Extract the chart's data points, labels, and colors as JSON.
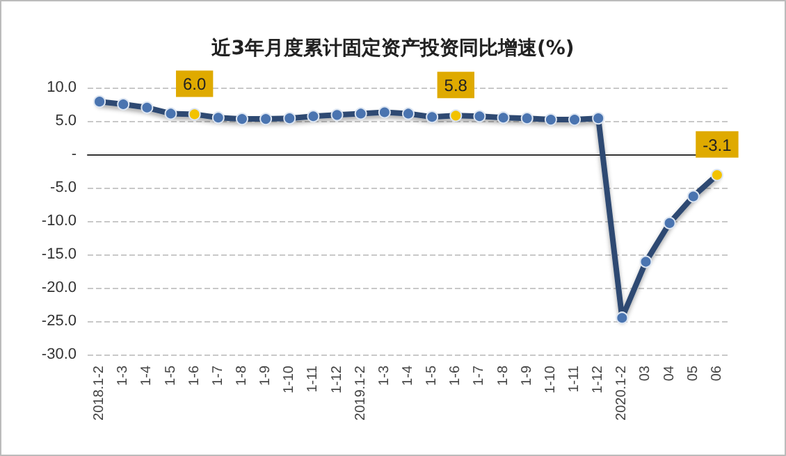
{
  "chart_data": {
    "type": "line",
    "title": "近3年月度累计固定资产投资同比增速(%)",
    "categories": [
      "2018.1-2",
      "1-3",
      "1-4",
      "1-5",
      "1-6",
      "1-7",
      "1-8",
      "1-9",
      "1-10",
      "1-11",
      "1-12",
      "2019.1-2",
      "1-3",
      "1-4",
      "1-5",
      "1-6",
      "1-7",
      "1-8",
      "1-9",
      "1-10",
      "1-11",
      "1-12",
      "2020.1-2",
      "03",
      "04",
      "05",
      "06"
    ],
    "series": [
      {
        "color": "#2d4a72",
        "values": [
          7.9,
          7.5,
          7.0,
          6.1,
          6.0,
          5.5,
          5.3,
          5.3,
          5.4,
          5.7,
          5.9,
          6.1,
          6.3,
          6.1,
          5.6,
          5.8,
          5.7,
          5.5,
          5.4,
          5.2,
          5.2,
          5.4,
          -24.5,
          -16.1,
          -10.3,
          -6.3,
          -3.1
        ],
        "colors": [
          "#4a74b0",
          "#4a74b0",
          "#4a74b0",
          "#4a74b0",
          "#f2c200",
          "#4a74b0",
          "#4a74b0",
          "#4a74b0",
          "#4a74b0",
          "#4a74b0",
          "#4a74b0",
          "#4a74b0",
          "#4a74b0",
          "#4a74b0",
          "#4a74b0",
          "#f2c200",
          "#4a74b0",
          "#4a74b0",
          "#4a74b0",
          "#4a74b0",
          "#4a74b0",
          "#4a74b0",
          "#4a74b0",
          "#4a74b0",
          "#4a74b0",
          "#4a74b0",
          "#f2c200"
        ],
        "value_labels": [
          null,
          null,
          null,
          null,
          "6.0",
          null,
          null,
          null,
          null,
          null,
          null,
          null,
          null,
          null,
          null,
          "5.8",
          null,
          null,
          null,
          null,
          null,
          null,
          null,
          null,
          null,
          null,
          "-3.1"
        ]
      }
    ],
    "ylim": [
      -30,
      10
    ],
    "yticks": [
      {
        "value": -30,
        "label": "-30.0"
      },
      {
        "value": -25,
        "label": "-25.0"
      },
      {
        "value": -20,
        "label": "-20.0"
      },
      {
        "value": -15,
        "label": "-15.0"
      },
      {
        "value": -10,
        "label": "-10.0"
      },
      {
        "value": -5,
        "label": "-5.0"
      },
      {
        "value": 0,
        "label": "-"
      },
      {
        "value": 5,
        "label": "5.0"
      },
      {
        "value": 10,
        "label": "10.0"
      }
    ],
    "grid": "y",
    "marker": "circle",
    "line_style": "solid"
  }
}
